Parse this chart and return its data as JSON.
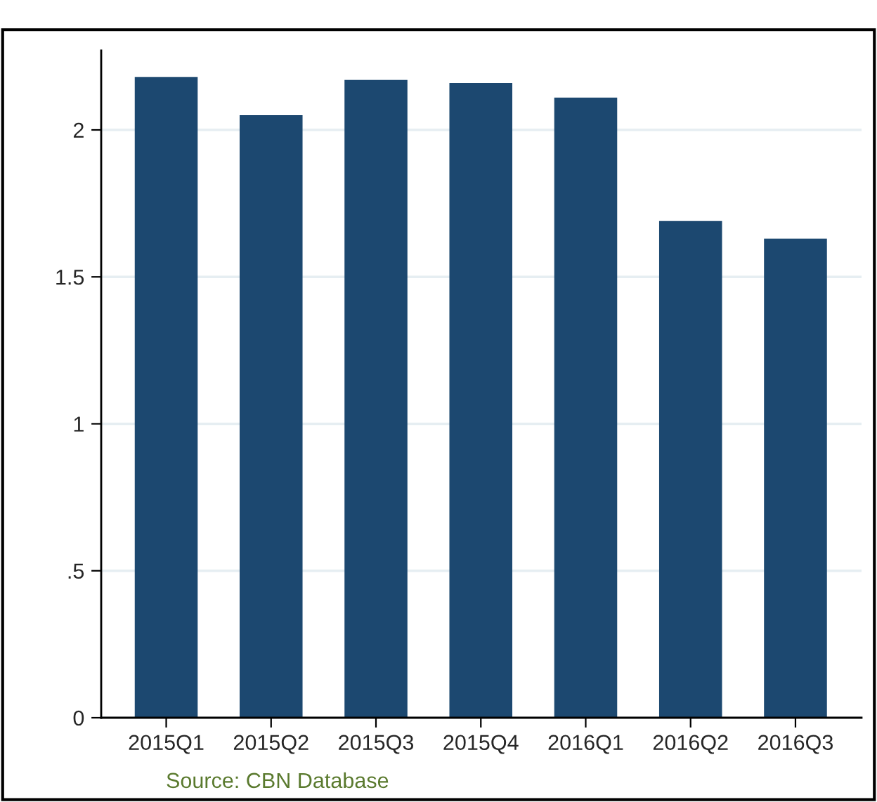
{
  "chart_data": {
    "type": "bar",
    "categories": [
      "2015Q1",
      "2015Q2",
      "2015Q3",
      "2015Q4",
      "2016Q1",
      "2016Q2",
      "2016Q3"
    ],
    "values": [
      2.18,
      2.05,
      2.17,
      2.16,
      2.11,
      1.69,
      1.63
    ],
    "color": "#1c4870",
    "ylim": [
      0,
      2.27
    ],
    "yticks": [
      0,
      {
        "value": 0.5,
        "label": ".5"
      },
      1,
      1.5,
      2
    ],
    "grid": "y",
    "annotations": [
      "Source: CBN Database"
    ]
  }
}
